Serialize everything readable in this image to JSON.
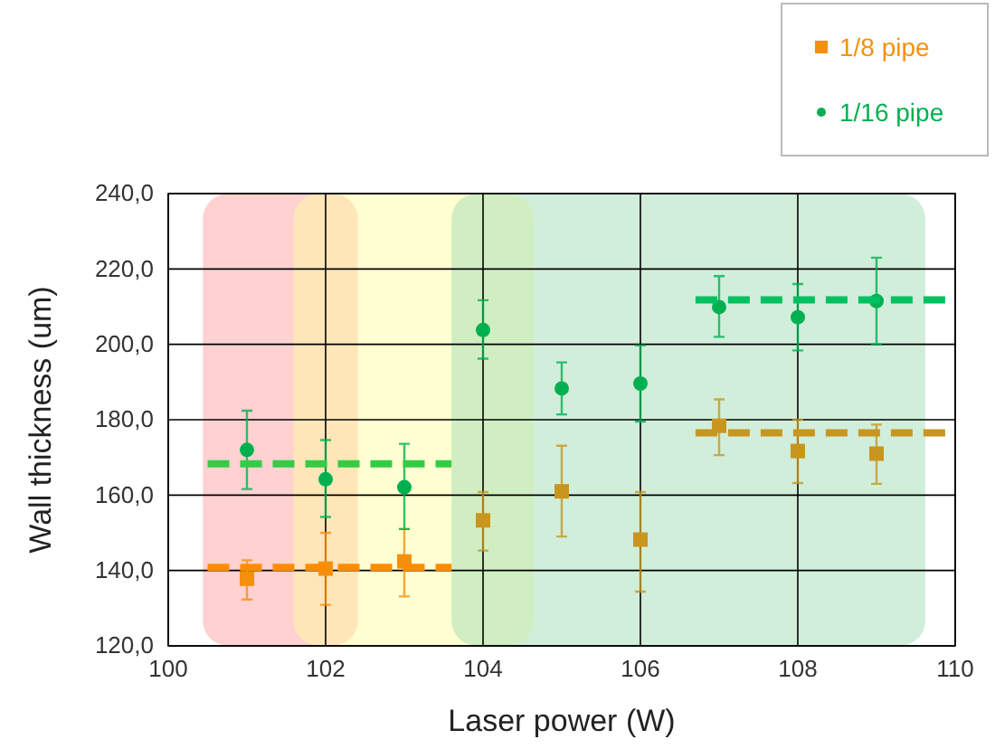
{
  "chart_data": {
    "type": "scatter",
    "xlabel": "Laser power (W)",
    "ylabel": "Wall thickness (um)",
    "xlim": [
      100,
      110
    ],
    "xticks": [
      100,
      102,
      104,
      106,
      108,
      110
    ],
    "ylim": [
      120,
      240
    ],
    "yticks": [
      {
        "value": 120,
        "label": "120,0"
      },
      {
        "value": 140,
        "label": "140,0"
      },
      {
        "value": 160,
        "label": "160,0"
      },
      {
        "value": 180,
        "label": "180,0"
      },
      {
        "value": 200,
        "label": "200,0"
      },
      {
        "value": 220,
        "label": "220,0"
      },
      {
        "value": 240,
        "label": "240,0"
      }
    ],
    "grid": true,
    "legend": "top right",
    "bands": [
      {
        "axis": "x",
        "from": 100.44,
        "to": 102.41,
        "color": "#ff9999"
      },
      {
        "axis": "x",
        "from": 101.59,
        "to": 104.64,
        "color": "#ffff99"
      },
      {
        "axis": "x",
        "from": 103.6,
        "to": 109.62,
        "color": "#99d9b0"
      }
    ],
    "series": [
      {
        "name": "1/8 pipe",
        "marker": "square",
        "color": "#f5900f",
        "colors": [
          "#f5900f",
          "#f5900f",
          "#f5900f",
          "#c8961e",
          "#c8961e",
          "#c8961e",
          "#c8961e",
          "#c8961e",
          "#c8961e"
        ],
        "x": [
          101,
          102,
          103,
          104,
          105,
          106,
          107,
          108,
          109
        ],
        "values": [
          137.8,
          140.5,
          142.4,
          153.3,
          161,
          148.2,
          178.4,
          171.7,
          171
        ],
        "errors": [
          [
            132.3,
            142.7
          ],
          [
            130.9,
            150
          ],
          [
            133.1,
            151
          ],
          [
            145.3,
            160.8
          ],
          [
            149,
            173.1
          ],
          [
            134.4,
            160.8
          ],
          [
            170.6,
            185.4
          ],
          [
            163.2,
            180
          ],
          [
            163,
            178.7
          ]
        ]
      },
      {
        "name": "1/16 pipe",
        "marker": "circle",
        "color": "#00b050",
        "x": [
          101,
          102,
          103,
          104,
          105,
          106,
          107,
          108,
          109
        ],
        "values": [
          172,
          164.2,
          162.1,
          203.8,
          188.3,
          189.6,
          209.9,
          207.2,
          211.5
        ],
        "errors": [
          [
            161.6,
            182.4
          ],
          [
            154.2,
            174.6
          ],
          [
            151,
            173.6
          ],
          [
            196.2,
            211.7
          ],
          [
            181.4,
            195.2
          ],
          [
            179.5,
            199.7
          ],
          [
            202,
            218.1
          ],
          [
            198.4,
            216
          ],
          [
            200,
            223
          ]
        ]
      },
      {
        "type": "line",
        "line_style": "dashed",
        "color": "#ff8c00",
        "x": [
          100.5,
          103.6
        ],
        "values": [
          140.8,
          140.8
        ]
      },
      {
        "type": "line",
        "line_style": "dashed",
        "color": "#33cc44",
        "x": [
          100.5,
          103.6
        ],
        "values": [
          168.3,
          168.3
        ]
      },
      {
        "type": "line",
        "line_style": "dashed",
        "color": "#c8961e",
        "x": [
          106.7,
          110
        ],
        "values": [
          176.5,
          176.5
        ]
      },
      {
        "type": "line",
        "line_style": "dashed",
        "color": "#00c060",
        "x": [
          106.7,
          110
        ],
        "values": [
          211.8,
          211.8
        ]
      }
    ]
  }
}
